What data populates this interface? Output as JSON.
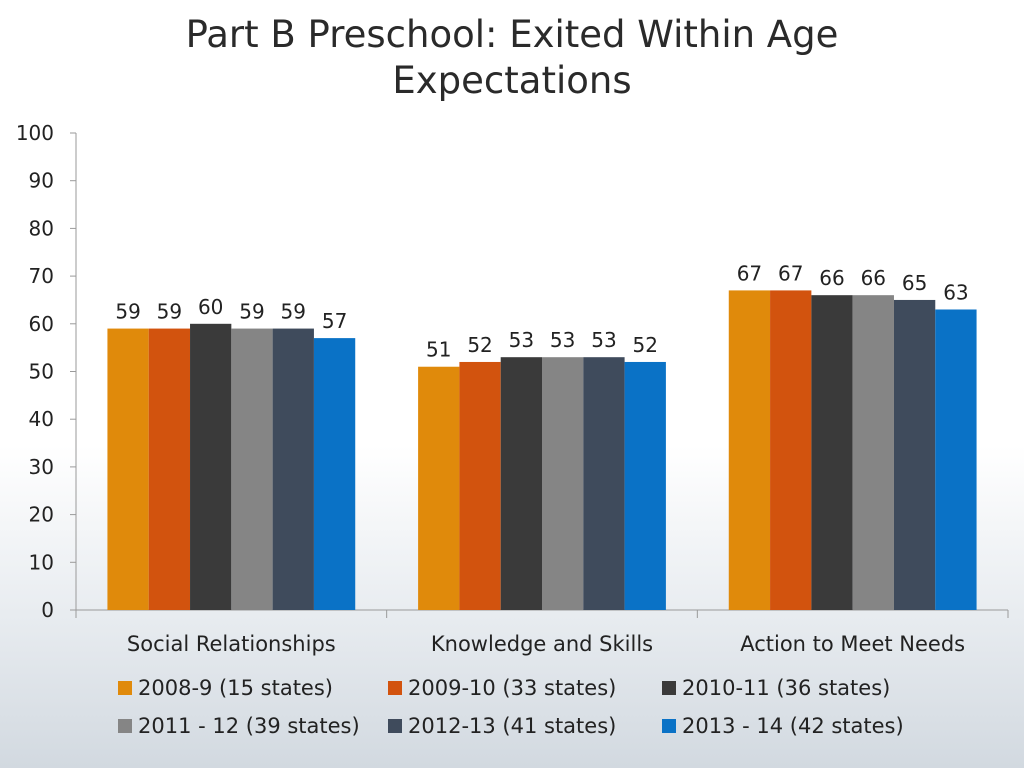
{
  "chart_data": {
    "type": "bar",
    "title_lines": [
      "Part B Preschool: Exited Within Age",
      "Expectations"
    ],
    "categories": [
      "Social Relationships",
      "Knowledge and Skills",
      "Action to Meet Needs"
    ],
    "series": [
      {
        "name": "2008-9 (15 states)",
        "color": "#e08a0b",
        "values": [
          59,
          51,
          67
        ]
      },
      {
        "name": "2009-10 (33 states)",
        "color": "#d2530e",
        "values": [
          59,
          52,
          67
        ]
      },
      {
        "name": "2010-11 (36 states)",
        "color": "#3a3a3a",
        "values": [
          60,
          53,
          66
        ]
      },
      {
        "name": "2011 - 12 (39 states)",
        "color": "#858585",
        "values": [
          59,
          53,
          66
        ]
      },
      {
        "name": "2012-13 (41 states)",
        "color": "#3f4b5c",
        "values": [
          59,
          53,
          65
        ]
      },
      {
        "name": "2013 - 14 (42 states)",
        "color": "#0a72c6",
        "values": [
          57,
          52,
          63
        ]
      }
    ],
    "ylim": [
      0,
      100
    ],
    "yticks": [
      0,
      10,
      20,
      30,
      40,
      50,
      60,
      70,
      80,
      90,
      100
    ],
    "xlabel": "",
    "ylabel": "",
    "grid": false,
    "legend_position": "bottom"
  }
}
